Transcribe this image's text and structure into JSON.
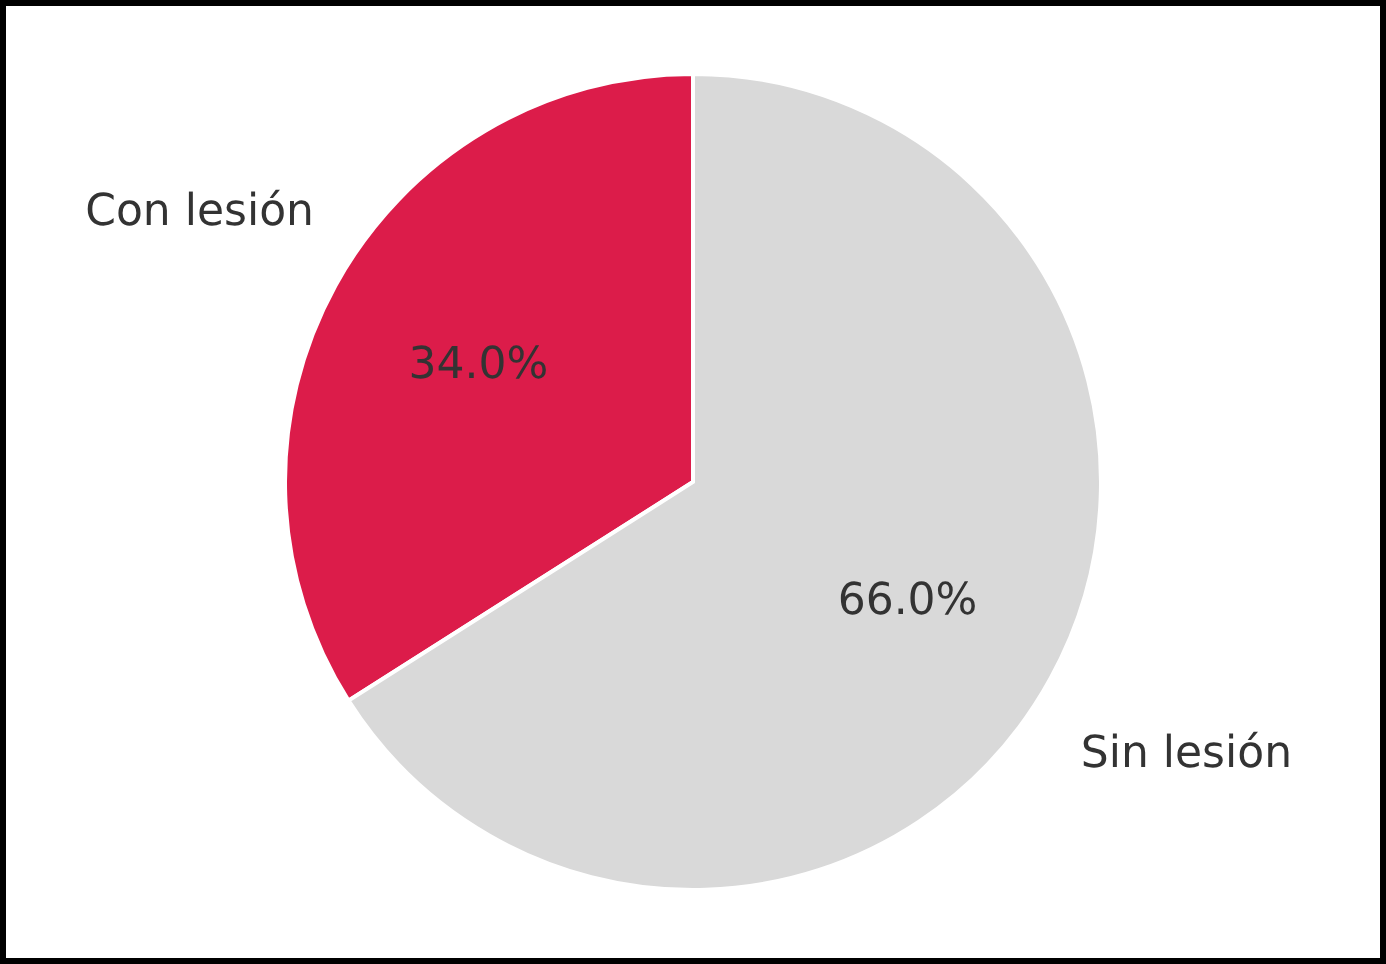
{
  "chart_data": {
    "type": "pie",
    "categories": [
      "Con lesión",
      "Sin lesión"
    ],
    "values": [
      34,
      66
    ],
    "colors": [
      "#dc1c4a",
      "#d9d9d9"
    ],
    "value_labels": [
      "34.0%",
      "66.0%"
    ]
  }
}
